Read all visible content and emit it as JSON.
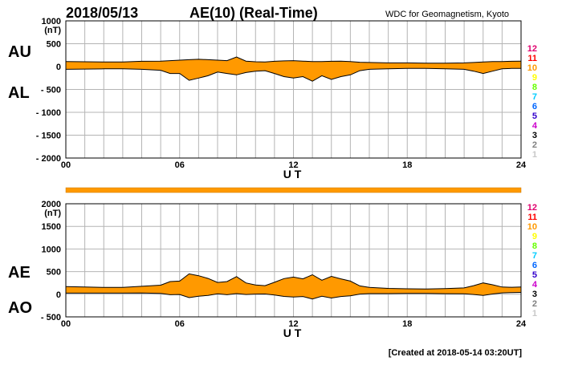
{
  "header": {
    "date": "2018/05/13",
    "title": "AE(10) (Real-Time)",
    "source": "WDC for Geomagnetism, Kyoto"
  },
  "footer": {
    "created": "[Created at 2018-05-14 03:20UT]"
  },
  "legend": {
    "stations": [
      "12",
      "11",
      "10",
      "9",
      "8",
      "7",
      "6",
      "5",
      "4",
      "3",
      "2",
      "1"
    ],
    "colors": [
      "#e0006e",
      "#ff0000",
      "#ff9900",
      "#ffff00",
      "#66ff00",
      "#00ccff",
      "#0066ff",
      "#3300cc",
      "#cc00cc",
      "#000000",
      "#808080",
      "#c8c8c8"
    ]
  },
  "colors": {
    "fill": "#ff9900",
    "line": "#000000",
    "grid": "#b4b4b4"
  },
  "chart_data": [
    {
      "type": "area",
      "panel": "AU/AL",
      "labels": {
        "upper": "AU",
        "lower": "AL"
      },
      "ylabel": "(nT)",
      "xlabel": "U T",
      "ylim": [
        -2000,
        1000
      ],
      "yticks": [
        1000,
        500,
        0,
        -500,
        -1000,
        -1500,
        -2000
      ],
      "ytick_labels": [
        "1000",
        "500",
        "0",
        "- 500",
        "- 1000",
        "- 1500",
        "- 2000"
      ],
      "xlim": [
        0,
        24
      ],
      "xticks": [
        0,
        6,
        12,
        18,
        24
      ],
      "xtick_labels": [
        "00",
        "06",
        "12",
        "18",
        "24"
      ],
      "x": [
        0,
        1,
        2,
        3,
        4,
        5,
        5.5,
        6,
        6.5,
        7,
        7.5,
        8,
        8.5,
        9,
        9.5,
        10,
        10.5,
        11,
        11.5,
        12,
        12.5,
        13,
        13.5,
        14,
        14.5,
        15,
        15.5,
        16,
        17,
        18,
        19,
        20,
        21,
        21.5,
        22,
        22.5,
        23,
        23.5,
        24
      ],
      "series": [
        {
          "name": "AU",
          "values": [
            110,
            105,
            100,
            100,
            115,
            120,
            130,
            140,
            150,
            160,
            150,
            140,
            130,
            210,
            120,
            105,
            100,
            115,
            125,
            130,
            120,
            110,
            110,
            115,
            120,
            110,
            95,
            90,
            80,
            80,
            75,
            75,
            80,
            90,
            100,
            110,
            110,
            115,
            120
          ]
        },
        {
          "name": "AL",
          "values": [
            -60,
            -55,
            -50,
            -50,
            -60,
            -80,
            -150,
            -150,
            -300,
            -250,
            -200,
            -120,
            -150,
            -180,
            -130,
            -100,
            -90,
            -150,
            -220,
            -250,
            -220,
            -320,
            -200,
            -280,
            -220,
            -180,
            -90,
            -60,
            -50,
            -40,
            -40,
            -50,
            -60,
            -100,
            -150,
            -100,
            -50,
            -40,
            -40
          ]
        }
      ]
    },
    {
      "type": "area",
      "panel": "AE/AO",
      "labels": {
        "upper": "AE",
        "lower": "AO"
      },
      "ylabel": "(nT)",
      "xlabel": "U T",
      "ylim": [
        -500,
        2000
      ],
      "yticks": [
        2000,
        1500,
        1000,
        500,
        0,
        -500
      ],
      "ytick_labels": [
        "2000",
        "1500",
        "1000",
        "500",
        "0",
        "- 500"
      ],
      "xlim": [
        0,
        24
      ],
      "xticks": [
        0,
        6,
        12,
        18,
        24
      ],
      "xtick_labels": [
        "00",
        "06",
        "12",
        "18",
        "24"
      ],
      "x": [
        0,
        1,
        2,
        3,
        4,
        5,
        5.5,
        6,
        6.5,
        7,
        7.5,
        8,
        8.5,
        9,
        9.5,
        10,
        10.5,
        11,
        11.5,
        12,
        12.5,
        13,
        13.5,
        14,
        14.5,
        15,
        15.5,
        16,
        17,
        18,
        19,
        20,
        21,
        21.5,
        22,
        22.5,
        23,
        23.5,
        24
      ],
      "series": [
        {
          "name": "AE",
          "values": [
            170,
            160,
            150,
            150,
            175,
            200,
            280,
            290,
            450,
            410,
            350,
            260,
            280,
            390,
            250,
            205,
            190,
            265,
            345,
            380,
            340,
            430,
            310,
            395,
            340,
            290,
            185,
            150,
            130,
            120,
            115,
            125,
            140,
            190,
            250,
            210,
            160,
            155,
            160
          ]
        },
        {
          "name": "AO",
          "values": [
            25,
            25,
            25,
            25,
            28,
            20,
            -10,
            -5,
            -75,
            -45,
            -25,
            10,
            -10,
            15,
            -5,
            3,
            5,
            -18,
            -48,
            -60,
            -50,
            -105,
            -45,
            -83,
            -50,
            -35,
            3,
            15,
            15,
            20,
            18,
            13,
            10,
            -5,
            -25,
            5,
            30,
            38,
            40
          ]
        }
      ]
    }
  ]
}
